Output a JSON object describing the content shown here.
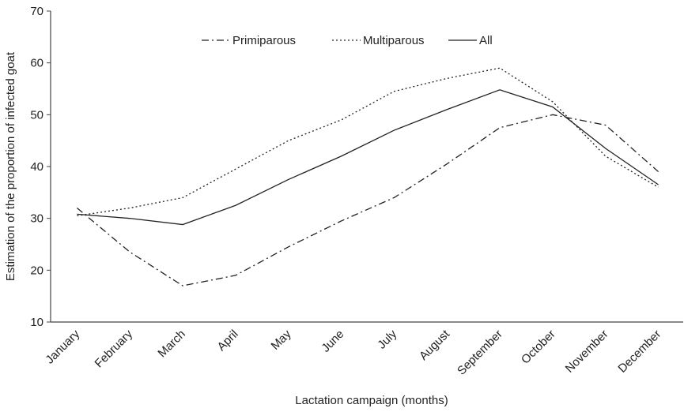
{
  "chart_data": {
    "type": "line",
    "xlabel": "Lactation campaign (months)",
    "ylabel": "Estimation of the proportion of infected goat",
    "categories": [
      "January",
      "February",
      "March",
      "April",
      "May",
      "June",
      "July",
      "August",
      "September",
      "October",
      "November",
      "December"
    ],
    "series": [
      {
        "name": "Primiparous",
        "color": "#222222",
        "dash": "dashdot",
        "values": [
          32,
          23.5,
          17,
          19,
          24.5,
          29.5,
          34,
          40.5,
          47.5,
          50,
          48,
          39
        ]
      },
      {
        "name": "Multiparous",
        "color": "#222222",
        "dash": "dotted",
        "values": [
          30.5,
          32,
          34,
          39.5,
          45,
          49,
          54.5,
          57,
          59,
          52.5,
          42,
          36
        ]
      },
      {
        "name": "All",
        "color": "#222222",
        "dash": "solid",
        "values": [
          30.8,
          30,
          28.8,
          32.5,
          37.5,
          42,
          47,
          51,
          54.8,
          51.5,
          43.5,
          36.5
        ]
      }
    ],
    "ylim": [
      10,
      70
    ],
    "yticks": [
      10,
      20,
      30,
      40,
      50,
      60,
      70
    ],
    "grid": false,
    "legend": "top"
  }
}
